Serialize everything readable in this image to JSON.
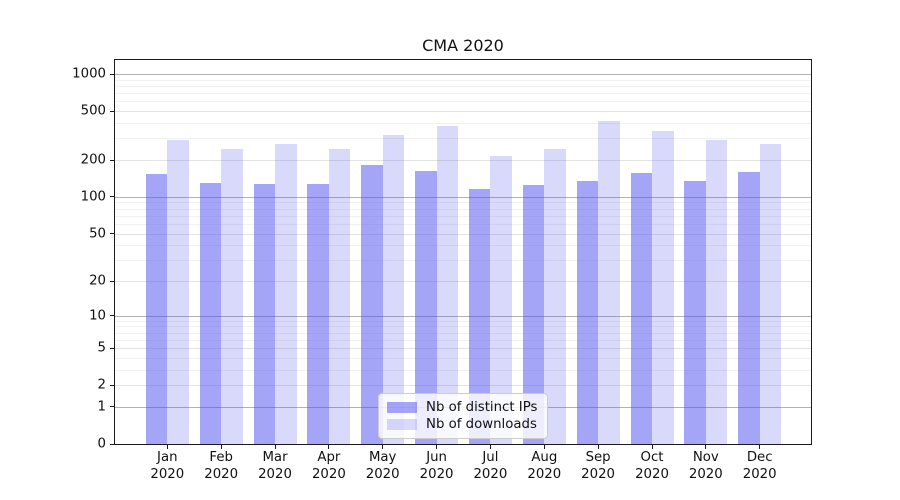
{
  "title": "CMA 2020",
  "chart_data": {
    "type": "bar",
    "title": "CMA 2020",
    "categories": [
      "Jan 2020",
      "Feb 2020",
      "Mar 2020",
      "Apr 2020",
      "May 2020",
      "Jun 2020",
      "Jul 2020",
      "Aug 2020",
      "Sep 2020",
      "Oct 2020",
      "Nov 2020",
      "Dec 2020"
    ],
    "series": [
      {
        "name": "Nb of distinct IPs",
        "values": [
          154,
          130,
          128,
          128,
          181,
          164,
          116,
          126,
          136,
          157,
          136,
          159
        ],
        "fill": "rgba(82,82,242,0.52)",
        "solid_hex": "#a5a5f4"
      },
      {
        "name": "Nb of downloads",
        "values": [
          290,
          247,
          268,
          247,
          321,
          378,
          217,
          246,
          417,
          342,
          293,
          268
        ],
        "fill": "rgba(82,82,242,0.22)",
        "solid_hex": "#d8d8f9"
      }
    ],
    "xlabel": "",
    "ylabel": "",
    "y_scale": "log1p",
    "ylim": [
      0,
      1300
    ],
    "y_ticks": [
      0,
      1,
      2,
      5,
      10,
      20,
      50,
      100,
      200,
      500,
      1000
    ],
    "y_tick_labels": [
      "0",
      "1",
      "2",
      "5",
      "10",
      "20",
      "50",
      "100",
      "200",
      "500",
      "1000"
    ],
    "grid": true,
    "grid_major_values": [
      1,
      10,
      100,
      1000
    ],
    "grid_mid_values": [
      2,
      5,
      20,
      50,
      200,
      500
    ],
    "grid_minor_values": [
      3,
      4,
      6,
      7,
      8,
      9,
      30,
      40,
      60,
      70,
      80,
      90,
      300,
      400,
      600,
      700,
      800,
      900
    ],
    "legend_position": "lower center"
  },
  "colors": {
    "bar_distinct_ips": "#a5a5f4",
    "bar_downloads": "#d8d8f9",
    "grid_major": "#b2b2b2",
    "grid_minor": "#e3e3e3",
    "axis": "#1a1a1a",
    "legend_border": "#cccccc"
  }
}
